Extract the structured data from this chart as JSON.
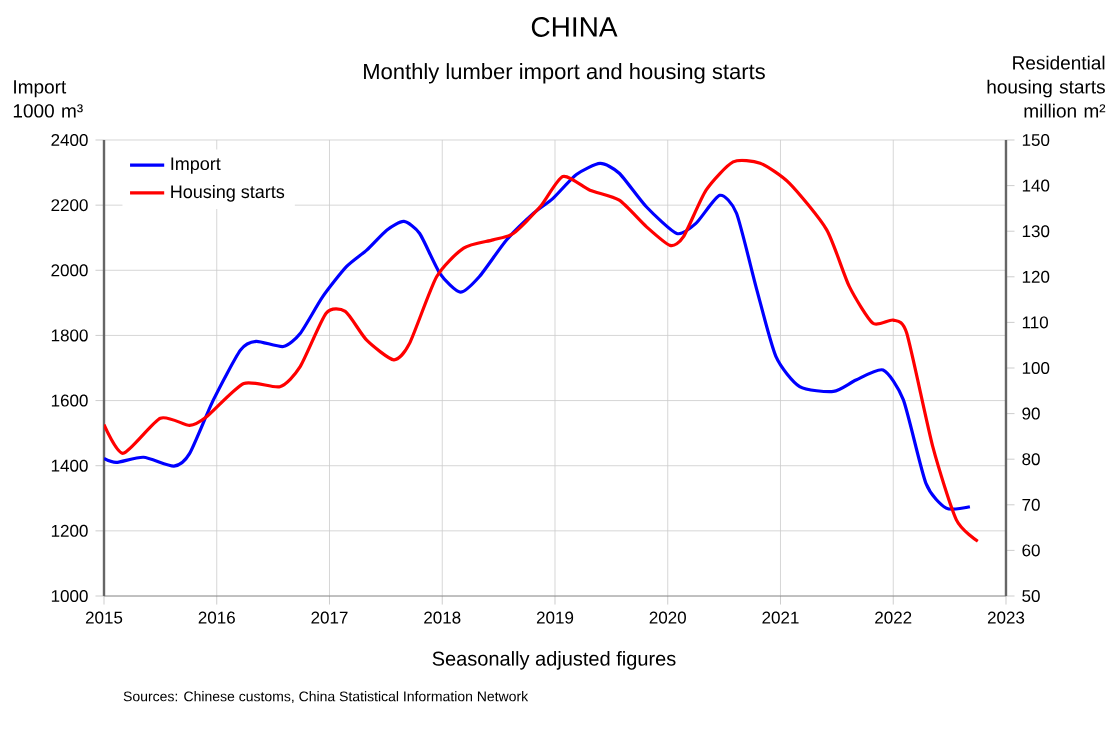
{
  "chart_data": {
    "type": "line",
    "title": "CHINA",
    "subtitle": "Monthly lumber import and housing starts",
    "xlabel": "Seasonally adjusted figures",
    "ylabel": "Import 1000 m³",
    "y2label": "Residential housing starts million m²",
    "annotations": [
      "Sources: Chinese customs, China Statistical Information Network"
    ],
    "xlim": [
      2015,
      2023
    ],
    "xticks": [
      2015,
      2016,
      2017,
      2018,
      2019,
      2020,
      2021,
      2022,
      2023
    ],
    "ylim": [
      1000,
      2400
    ],
    "yticks": [
      1000,
      1200,
      1400,
      1600,
      1800,
      2000,
      2200,
      2400
    ],
    "y2lim": [
      50,
      150
    ],
    "y2ticks": [
      50,
      60,
      70,
      80,
      90,
      100,
      110,
      120,
      130,
      140,
      150
    ],
    "grid": true,
    "legend": "top left",
    "series": [
      {
        "name": "Import",
        "color": "#0000ff",
        "x": [
          2015.0,
          2015.11,
          2015.35,
          2015.62,
          2015.76,
          2015.97,
          2016.21,
          2016.35,
          2016.59,
          2016.74,
          2016.94,
          2017.15,
          2017.33,
          2017.51,
          2017.66,
          2017.8,
          2017.98,
          2018.16,
          2018.33,
          2018.57,
          2018.81,
          2018.98,
          2019.19,
          2019.4,
          2019.57,
          2019.81,
          2020.08,
          2020.25,
          2020.46,
          2020.61,
          2020.79,
          2020.96,
          2021.17,
          2021.47,
          2021.67,
          2021.91,
          2022.09,
          2022.29,
          2022.47,
          2022.68
        ],
        "values": [
          1422,
          1410,
          1426,
          1399,
          1438,
          1602,
          1755,
          1782,
          1766,
          1806,
          1919,
          2011,
          2062,
          2124,
          2150,
          2113,
          1990,
          1933,
          1981,
          2093,
          2175,
          2220,
          2294,
          2328,
          2298,
          2195,
          2113,
          2144,
          2230,
          2175,
          1940,
          1735,
          1643,
          1628,
          1663,
          1694,
          1602,
          1346,
          1270,
          1274
        ]
      },
      {
        "name": "Housing starts",
        "color": "#ff0000",
        "axis": "y2",
        "x": [
          2015.0,
          2015.17,
          2015.5,
          2015.76,
          2015.91,
          2016.24,
          2016.56,
          2016.74,
          2016.97,
          2017.14,
          2017.33,
          2017.57,
          2017.71,
          2017.95,
          2018.19,
          2018.45,
          2018.63,
          2018.87,
          2019.07,
          2019.31,
          2019.57,
          2019.81,
          2020.02,
          2020.14,
          2020.34,
          2020.58,
          2020.82,
          2021.08,
          2021.41,
          2021.61,
          2021.82,
          2022.0,
          2022.12,
          2022.35,
          2022.56,
          2022.75
        ],
        "values": [
          87.6,
          81.3,
          89.0,
          87.4,
          89.3,
          96.6,
          95.9,
          100.3,
          112.0,
          112.4,
          106.1,
          101.8,
          105.4,
          120.0,
          126.3,
          128.1,
          129.5,
          135.4,
          142.0,
          139.0,
          136.8,
          131.0,
          126.9,
          128.8,
          139.0,
          145.2,
          144.9,
          140.5,
          130.3,
          117.9,
          109.8,
          110.5,
          107.6,
          82.8,
          66.7,
          62.0
        ]
      }
    ]
  }
}
